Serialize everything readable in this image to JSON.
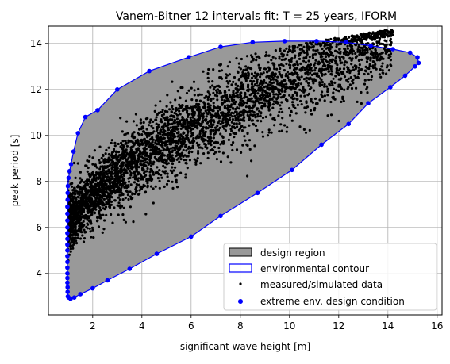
{
  "chart_data": {
    "type": "scatter",
    "title": "Vanem-Bitner 12 intervals fit: T = 25 years, IFORM",
    "xlabel": "significant wave height [m]",
    "ylabel": "peak period [s]",
    "xlim": [
      0.2,
      16.2
    ],
    "ylim": [
      2.2,
      14.75
    ],
    "xticks": [
      2,
      4,
      6,
      8,
      10,
      12,
      14,
      16
    ],
    "yticks": [
      4,
      6,
      8,
      10,
      12,
      14
    ],
    "grid": true,
    "legend_position": "lower-right",
    "legend": [
      "design region",
      "environmental contour",
      "measured/simulated data",
      "extreme env. design condition"
    ],
    "colors": {
      "design_region_fill": "#999999",
      "contour_line": "#0000ff",
      "data_points": "#000000",
      "design_condition_points": "#0000ff",
      "grid": "#b0b0b0"
    },
    "series": [
      {
        "name": "extreme env. design condition",
        "x": [
          0.99,
          0.98,
          0.98,
          0.97,
          0.97,
          0.97,
          0.97,
          0.97,
          0.97,
          0.97,
          0.97,
          0.97,
          0.97,
          0.97,
          0.97,
          0.97,
          0.97,
          0.98,
          0.98,
          0.99,
          1.02,
          1.06,
          1.12,
          1.22,
          1.4,
          1.7,
          2.2,
          3.0,
          4.3,
          5.9,
          7.2,
          8.5,
          9.8,
          11.1,
          12.3,
          13.3,
          14.2,
          14.9,
          15.2,
          15.25,
          15.1,
          14.7,
          14.1,
          13.2,
          12.4,
          11.3,
          10.1,
          8.7,
          7.2,
          6.0,
          4.6,
          3.5,
          2.6,
          2.0,
          1.5,
          1.25,
          1.1,
          1.02
        ],
        "y": [
          3.0,
          3.2,
          3.4,
          3.6,
          3.8,
          4.0,
          4.25,
          4.5,
          4.75,
          5.0,
          5.25,
          5.5,
          5.75,
          6.0,
          6.3,
          6.6,
          6.9,
          7.2,
          7.5,
          7.8,
          8.15,
          8.45,
          8.75,
          9.3,
          10.1,
          10.8,
          11.1,
          12.0,
          12.8,
          13.4,
          13.85,
          14.05,
          14.1,
          14.1,
          14.05,
          13.9,
          13.75,
          13.6,
          13.4,
          13.15,
          13.0,
          12.6,
          12.1,
          11.4,
          10.5,
          9.6,
          8.5,
          7.5,
          6.5,
          5.6,
          4.85,
          4.2,
          3.7,
          3.35,
          3.1,
          2.95,
          2.9,
          2.95
        ]
      }
    ]
  }
}
